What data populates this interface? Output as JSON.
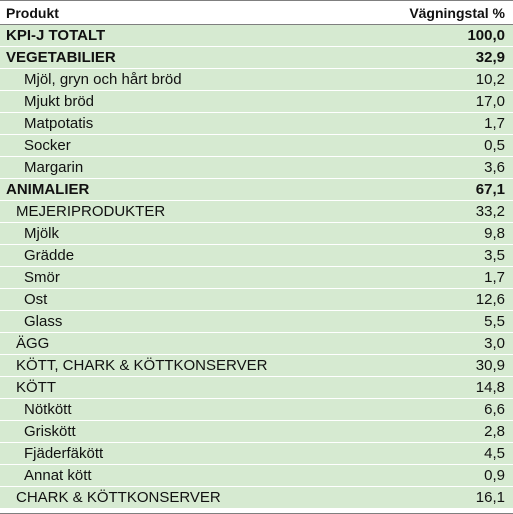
{
  "header": {
    "col1": "Produkt",
    "col2": "Vägningstal %"
  },
  "rows": [
    {
      "label": "KPI-J TOTALT",
      "value": "100,0",
      "bold": true,
      "level": 0
    },
    {
      "label": "VEGETABILIER",
      "value": "32,9",
      "bold": true,
      "level": 0
    },
    {
      "label": "Mjöl, gryn och hårt bröd",
      "value": "10,2",
      "bold": false,
      "level": 2
    },
    {
      "label": "Mjukt bröd",
      "value": "17,0",
      "bold": false,
      "level": 2
    },
    {
      "label": "Matpotatis",
      "value": "1,7",
      "bold": false,
      "level": 2
    },
    {
      "label": "Socker",
      "value": "0,5",
      "bold": false,
      "level": 2
    },
    {
      "label": "Margarin",
      "value": "3,6",
      "bold": false,
      "level": 2
    },
    {
      "label": "ANIMALIER",
      "value": "67,1",
      "bold": true,
      "level": 0
    },
    {
      "label": "MEJERIPRODUKTER",
      "value": "33,2",
      "bold": false,
      "level": 1
    },
    {
      "label": "Mjölk",
      "value": "9,8",
      "bold": false,
      "level": 2
    },
    {
      "label": "Grädde",
      "value": "3,5",
      "bold": false,
      "level": 2
    },
    {
      "label": "Smör",
      "value": "1,7",
      "bold": false,
      "level": 2
    },
    {
      "label": "Ost",
      "value": "12,6",
      "bold": false,
      "level": 2
    },
    {
      "label": "Glass",
      "value": "5,5",
      "bold": false,
      "level": 2
    },
    {
      "label": "ÄGG",
      "value": "3,0",
      "bold": false,
      "level": 1
    },
    {
      "label": "KÖTT, CHARK & KÖTTKONSERVER",
      "value": "30,9",
      "bold": false,
      "level": 1
    },
    {
      "label": "KÖTT",
      "value": "14,8",
      "bold": false,
      "level": 1
    },
    {
      "label": "Nötkött",
      "value": "6,6",
      "bold": false,
      "level": 2
    },
    {
      "label": "Griskött",
      "value": "2,8",
      "bold": false,
      "level": 2
    },
    {
      "label": "Fjäderfäkött",
      "value": "4,5",
      "bold": false,
      "level": 2
    },
    {
      "label": "Annat kött",
      "value": "0,9",
      "bold": false,
      "level": 2
    },
    {
      "label": "CHARK & KÖTTKONSERVER",
      "value": "16,1",
      "bold": false,
      "level": 1
    }
  ]
}
